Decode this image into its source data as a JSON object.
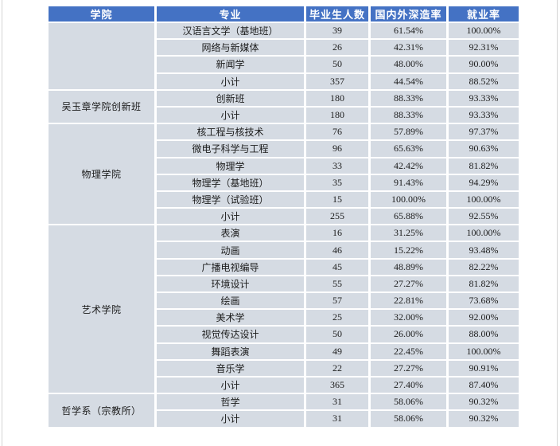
{
  "colors": {
    "header_bg": "#4472C4",
    "cell_bg": "#D5DBE3",
    "header_text": "#FFFFFF",
    "body_text": "#1C1C1C",
    "page_edge_line": "#D4D4D4"
  },
  "table": {
    "headers": [
      "学院",
      "专业",
      "毕业生人数",
      "国内外深造率",
      "就业率"
    ],
    "header_keys": [
      "college",
      "major",
      "graduates",
      "further-study-rate",
      "employment-rate"
    ],
    "groups": [
      {
        "college": "",
        "rows": [
          [
            "汉语言文学（基地班）",
            "39",
            "61.54%",
            "100.00%"
          ],
          [
            "网络与新媒体",
            "26",
            "42.31%",
            "92.31%"
          ],
          [
            "新闻学",
            "50",
            "48.00%",
            "90.00%"
          ],
          [
            "小计",
            "357",
            "44.54%",
            "88.52%"
          ]
        ]
      },
      {
        "college": "吴玉章学院创新班",
        "rows": [
          [
            "创新班",
            "180",
            "88.33%",
            "93.33%"
          ],
          [
            "小计",
            "180",
            "88.33%",
            "93.33%"
          ]
        ]
      },
      {
        "college": "物理学院",
        "rows": [
          [
            "核工程与核技术",
            "76",
            "57.89%",
            "97.37%"
          ],
          [
            "微电子科学与工程",
            "96",
            "65.63%",
            "90.63%"
          ],
          [
            "物理学",
            "33",
            "42.42%",
            "81.82%"
          ],
          [
            "物理学（基地班）",
            "35",
            "91.43%",
            "94.29%"
          ],
          [
            "物理学（试验班）",
            "15",
            "100.00%",
            "100.00%"
          ],
          [
            "小计",
            "255",
            "65.88%",
            "92.55%"
          ]
        ]
      },
      {
        "college": "艺术学院",
        "rows": [
          [
            "表演",
            "16",
            "31.25%",
            "100.00%"
          ],
          [
            "动画",
            "46",
            "15.22%",
            "93.48%"
          ],
          [
            "广播电视编导",
            "45",
            "48.89%",
            "82.22%"
          ],
          [
            "环境设计",
            "55",
            "27.27%",
            "81.82%"
          ],
          [
            "绘画",
            "57",
            "22.81%",
            "73.68%"
          ],
          [
            "美术学",
            "25",
            "32.00%",
            "92.00%"
          ],
          [
            "视觉传达设计",
            "50",
            "26.00%",
            "88.00%"
          ],
          [
            "舞蹈表演",
            "49",
            "22.45%",
            "100.00%"
          ],
          [
            "音乐学",
            "22",
            "27.27%",
            "90.91%"
          ],
          [
            "小计",
            "365",
            "27.40%",
            "87.40%"
          ]
        ]
      },
      {
        "college": "哲学系（宗教所）",
        "rows": [
          [
            "哲学",
            "31",
            "58.06%",
            "90.32%"
          ],
          [
            "小计",
            "31",
            "58.06%",
            "90.32%"
          ]
        ]
      }
    ]
  }
}
